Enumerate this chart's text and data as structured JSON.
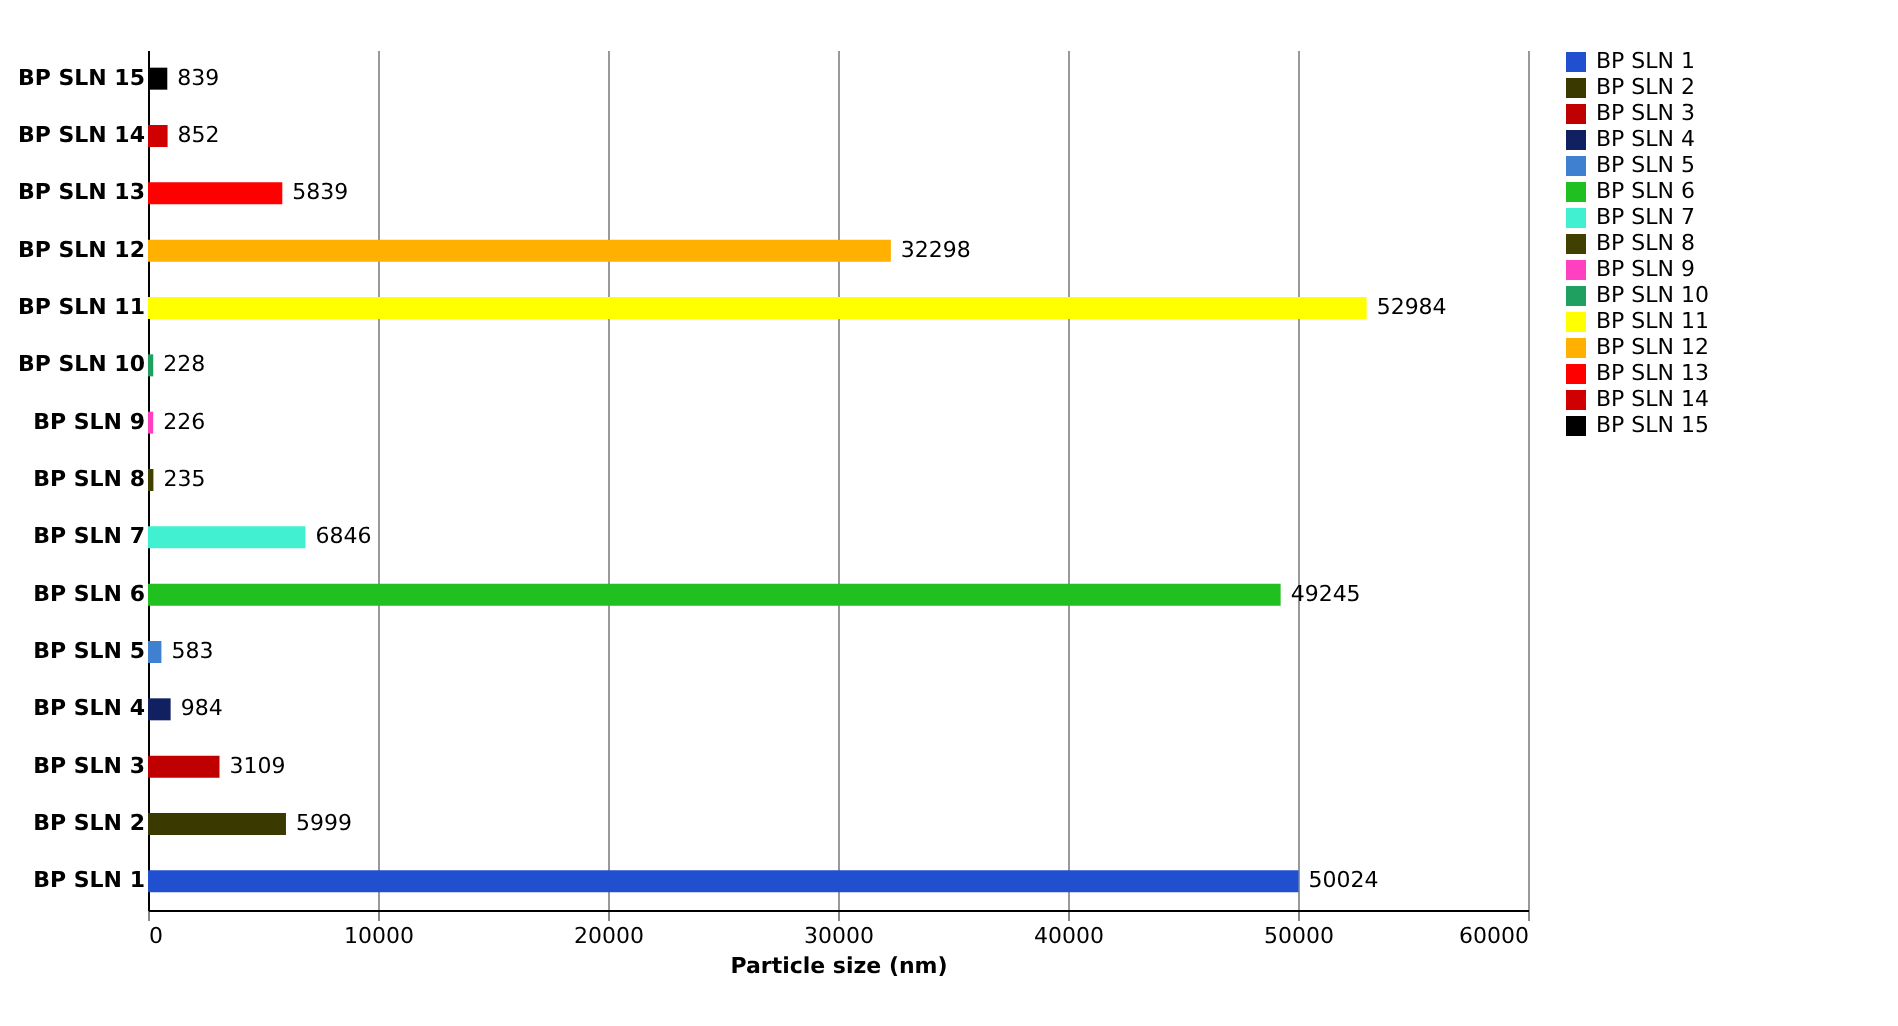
{
  "chart_data": {
    "type": "bar",
    "orientation": "horizontal",
    "xlabel": "Particle size (nm)",
    "categories": [
      "BP SLN 15",
      "BP SLN 14",
      "BP SLN 13",
      "BP SLN 12",
      "BP SLN 11",
      "BP SLN 10",
      "BP SLN 9",
      "BP SLN 8",
      "BP SLN 7",
      "BP SLN 6",
      "BP SLN 5",
      "BP SLN 4",
      "BP SLN 3",
      "BP SLN 2",
      "BP SLN 1"
    ],
    "series": [
      {
        "name": "BP SLN 1",
        "color": "#2050d0",
        "values": [
          null,
          null,
          null,
          null,
          null,
          null,
          null,
          null,
          null,
          null,
          null,
          null,
          null,
          null,
          50024
        ]
      },
      {
        "name": "BP SLN 2",
        "color": "#3a3a00",
        "values": [
          null,
          null,
          null,
          null,
          null,
          null,
          null,
          null,
          null,
          null,
          null,
          null,
          null,
          5999,
          null
        ]
      },
      {
        "name": "BP SLN 3",
        "color": "#c00000",
        "values": [
          null,
          null,
          null,
          null,
          null,
          null,
          null,
          null,
          null,
          null,
          null,
          null,
          3109,
          null,
          null
        ]
      },
      {
        "name": "BP SLN 4",
        "color": "#102060",
        "values": [
          null,
          null,
          null,
          null,
          null,
          null,
          null,
          null,
          null,
          null,
          null,
          984,
          null,
          null,
          null
        ]
      },
      {
        "name": "BP SLN 5",
        "color": "#4080d0",
        "values": [
          null,
          null,
          null,
          null,
          null,
          null,
          null,
          null,
          null,
          null,
          583,
          null,
          null,
          null,
          null
        ]
      },
      {
        "name": "BP SLN 6",
        "color": "#20c020",
        "values": [
          null,
          null,
          null,
          null,
          null,
          null,
          null,
          null,
          null,
          49245,
          null,
          null,
          null,
          null,
          null
        ]
      },
      {
        "name": "BP SLN 7",
        "color": "#40f0d0",
        "values": [
          null,
          null,
          null,
          null,
          null,
          null,
          null,
          null,
          6846,
          null,
          null,
          null,
          null,
          null,
          null
        ]
      },
      {
        "name": "BP SLN 8",
        "color": "#404000",
        "values": [
          null,
          null,
          null,
          null,
          null,
          null,
          null,
          235,
          null,
          null,
          null,
          null,
          null,
          null,
          null
        ]
      },
      {
        "name": "BP SLN 9",
        "color": "#ff40c0",
        "values": [
          null,
          null,
          null,
          null,
          null,
          null,
          226,
          null,
          null,
          null,
          null,
          null,
          null,
          null,
          null
        ]
      },
      {
        "name": "BP SLN 10",
        "color": "#20a060",
        "values": [
          null,
          null,
          null,
          null,
          null,
          228,
          null,
          null,
          null,
          null,
          null,
          null,
          null,
          null,
          null
        ]
      },
      {
        "name": "BP SLN 11",
        "color": "#ffff00",
        "values": [
          null,
          null,
          null,
          null,
          52984,
          null,
          null,
          null,
          null,
          null,
          null,
          null,
          null,
          null,
          null
        ]
      },
      {
        "name": "BP SLN 12",
        "color": "#ffb000",
        "values": [
          null,
          null,
          null,
          32298,
          null,
          null,
          null,
          null,
          null,
          null,
          null,
          null,
          null,
          null,
          null
        ]
      },
      {
        "name": "BP SLN 13",
        "color": "#ff0000",
        "values": [
          null,
          null,
          5839,
          null,
          null,
          null,
          null,
          null,
          null,
          null,
          null,
          null,
          null,
          null,
          null
        ]
      },
      {
        "name": "BP SLN 14",
        "color": "#d00000",
        "values": [
          null,
          852,
          null,
          null,
          null,
          null,
          null,
          null,
          null,
          null,
          null,
          null,
          null,
          null,
          null
        ]
      },
      {
        "name": "BP SLN 15",
        "color": "#000000",
        "values": [
          839,
          null,
          null,
          null,
          null,
          null,
          null,
          null,
          null,
          null,
          null,
          null,
          null,
          null,
          null
        ]
      }
    ],
    "xlim": [
      0,
      60000
    ],
    "xticks": [
      0,
      10000,
      20000,
      30000,
      40000,
      50000,
      60000
    ],
    "grid": "x",
    "legend": "right",
    "data_labels": true
  }
}
